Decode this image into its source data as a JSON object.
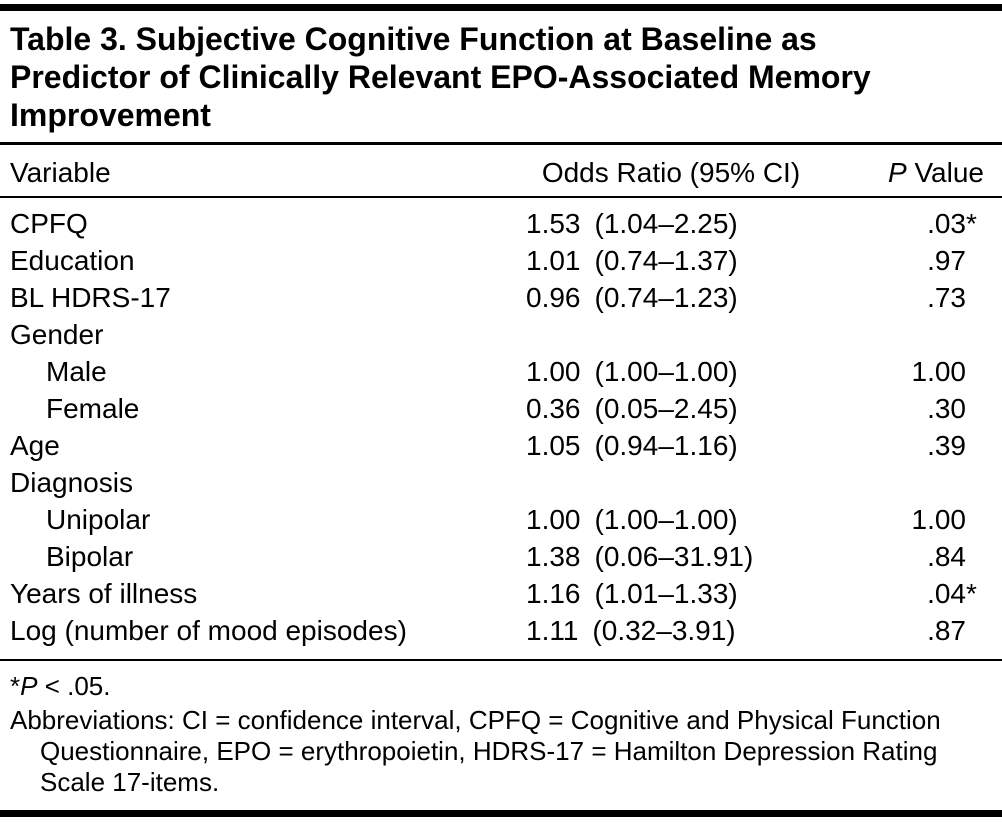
{
  "colors": {
    "text": "#000000",
    "rule": "#000000",
    "background": "#ffffff"
  },
  "table": {
    "title": "Table 3. Subjective Cognitive Function at Baseline as Predictor of Clinically Relevant EPO-Associated Memory Improvement",
    "columns": {
      "variable": "Variable",
      "odds": "Odds Ratio (95% CI)",
      "p_italic": "P",
      "p_rest": " Value"
    },
    "rows": [
      {
        "variable": "CPFQ",
        "indent": false,
        "or": "1.53",
        "ci": "(1.04–2.25)",
        "p": ".03",
        "star": "*"
      },
      {
        "variable": "Education",
        "indent": false,
        "or": "1.01",
        "ci": "(0.74–1.37)",
        "p": ".97",
        "star": ""
      },
      {
        "variable": "BL HDRS-17",
        "indent": false,
        "or": "0.96",
        "ci": "(0.74–1.23)",
        "p": ".73",
        "star": ""
      },
      {
        "variable": "Gender",
        "indent": false,
        "or": "",
        "ci": "",
        "p": "",
        "star": ""
      },
      {
        "variable": "Male",
        "indent": true,
        "or": "1.00",
        "ci": "(1.00–1.00)",
        "p": "1.00",
        "star": ""
      },
      {
        "variable": "Female",
        "indent": true,
        "or": "0.36",
        "ci": "(0.05–2.45)",
        "p": ".30",
        "star": ""
      },
      {
        "variable": "Age",
        "indent": false,
        "or": "1.05",
        "ci": "(0.94–1.16)",
        "p": ".39",
        "star": ""
      },
      {
        "variable": "Diagnosis",
        "indent": false,
        "or": "",
        "ci": "",
        "p": "",
        "star": ""
      },
      {
        "variable": "Unipolar",
        "indent": true,
        "or": "1.00",
        "ci": "(1.00–1.00)",
        "p": "1.00",
        "star": ""
      },
      {
        "variable": "Bipolar",
        "indent": true,
        "or": "1.38",
        "ci": "(0.06–31.91)",
        "p": ".84",
        "star": ""
      },
      {
        "variable": "Years of illness",
        "indent": false,
        "or": "1.16",
        "ci": "(1.01–1.33)",
        "p": ".04",
        "star": "*"
      },
      {
        "variable": "Log (number of mood episodes)",
        "indent": false,
        "or": "1.11",
        "ci": "(0.32–3.91)",
        "p": ".87",
        "star": ""
      }
    ],
    "footnotes": {
      "significance": {
        "star": "*",
        "italic": "P",
        "rest": " < .05."
      },
      "abbreviations": "Abbreviations: CI = confidence interval, CPFQ = Cognitive and Physical Function Questionnaire, EPO = erythropoietin, HDRS-17 = Hamilton Depression Rating Scale 17-items."
    }
  }
}
